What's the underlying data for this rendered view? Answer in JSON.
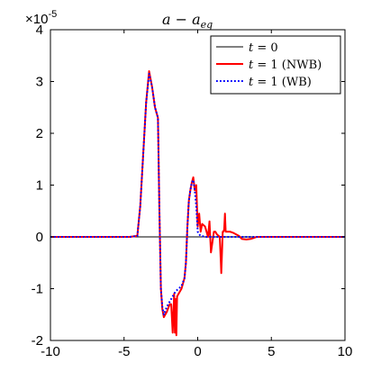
{
  "chart_data": {
    "type": "line",
    "title_main": "a − a",
    "title_sub": "eq",
    "y_multiplier": "×10",
    "y_multiplier_exp": "-5",
    "xlim": [
      -10,
      10
    ],
    "ylim": [
      -2,
      4
    ],
    "xticks": [
      -10,
      -5,
      0,
      5,
      10
    ],
    "yticks": [
      -2,
      -1,
      0,
      1,
      2,
      3,
      4
    ],
    "legend_position": "top-right",
    "grid": false,
    "series": [
      {
        "name": "t = 0",
        "legend_var": "t",
        "legend_rest": " = 0",
        "color": "#000000",
        "style": "solid",
        "x": [
          -10,
          10
        ],
        "y": [
          0,
          0
        ]
      },
      {
        "name": "t = 1 (NWB)",
        "legend_var": "t",
        "legend_rest": " = 1 (NWB)",
        "color": "#ff0000",
        "style": "solid",
        "x": [
          -10,
          -4.6,
          -4.1,
          -3.9,
          -3.7,
          -3.5,
          -3.3,
          -3.1,
          -2.9,
          -2.7,
          -2.6,
          -2.5,
          -2.4,
          -2.3,
          -2.1,
          -1.9,
          -1.8,
          -1.7,
          -1.6,
          -1.55,
          -1.5,
          -1.45,
          -1.4,
          -1.3,
          -1.2,
          -1.1,
          -1.0,
          -0.9,
          -0.8,
          -0.7,
          -0.6,
          -0.5,
          -0.4,
          -0.3,
          -0.2,
          -0.1,
          0.0,
          0.1,
          0.2,
          0.3,
          0.5,
          0.7,
          0.8,
          0.9,
          1.0,
          1.1,
          1.2,
          1.3,
          1.5,
          1.6,
          1.7,
          1.75,
          1.8,
          1.85,
          1.9,
          2.0,
          2.2,
          2.4,
          2.6,
          2.8,
          3.0,
          3.3,
          3.6,
          4.0,
          5.0,
          10
        ],
        "y": [
          0,
          0,
          0.02,
          0.6,
          1.6,
          2.6,
          3.2,
          2.9,
          2.5,
          2.3,
          0.5,
          -1.0,
          -1.4,
          -1.55,
          -1.45,
          -1.3,
          -1.3,
          -1.85,
          -1.1,
          -1.85,
          -1.2,
          -1.9,
          -1.15,
          -1.1,
          -1.05,
          -1.0,
          -0.9,
          -0.8,
          -0.5,
          0.2,
          0.7,
          0.9,
          1.05,
          1.15,
          0.9,
          1.0,
          0.2,
          0.45,
          0.1,
          0.25,
          0.2,
          0.0,
          0.3,
          -0.3,
          -0.1,
          0.1,
          0.1,
          0.05,
          0.0,
          -0.7,
          0.1,
          0.1,
          0.15,
          0.45,
          0.1,
          0.1,
          0.1,
          0.08,
          0.05,
          0.02,
          -0.04,
          -0.05,
          -0.04,
          0.0,
          0.0,
          0.0
        ]
      },
      {
        "name": "t = 1 (WB)",
        "legend_var": "t",
        "legend_rest": " = 1 (WB)",
        "color": "#0000ff",
        "style": "dotted",
        "x": [
          -10,
          -4.6,
          -4.1,
          -3.9,
          -3.7,
          -3.5,
          -3.3,
          -3.1,
          -2.9,
          -2.7,
          -2.6,
          -2.5,
          -2.4,
          -2.3,
          -2.1,
          -1.9,
          -1.7,
          -1.5,
          -1.3,
          -1.1,
          -0.9,
          -0.8,
          -0.7,
          -0.6,
          -0.5,
          -0.4,
          -0.3,
          -0.2,
          -0.1,
          0.0,
          0.1,
          0.2,
          0.4,
          0.6,
          0.8,
          1.0,
          1.5,
          2.0,
          2.5,
          3.0,
          3.5,
          4.0,
          5.0,
          10
        ],
        "y": [
          0,
          0,
          0.02,
          0.6,
          1.6,
          2.6,
          3.15,
          2.9,
          2.5,
          2.3,
          0.5,
          -1.0,
          -1.35,
          -1.5,
          -1.35,
          -1.25,
          -1.15,
          -1.05,
          -1.0,
          -0.95,
          -0.8,
          -0.5,
          0.2,
          0.7,
          0.9,
          1.05,
          1.1,
          0.9,
          0.6,
          0.1,
          0.05,
          0.02,
          0.01,
          0.0,
          0.0,
          0.0,
          0.0,
          0.0,
          0.0,
          0.0,
          0.0,
          0.0,
          0.0,
          0.0
        ]
      }
    ]
  }
}
